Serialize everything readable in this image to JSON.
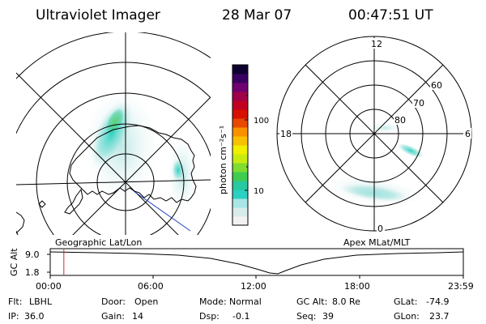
{
  "header": {
    "instrument": "Ultraviolet Imager",
    "date": "28 Mar 07",
    "time": "00:47:51 UT"
  },
  "colorbar": {
    "label": "photon cm⁻²s⁻¹",
    "ticks": [
      "100",
      "10"
    ],
    "colors": [
      "#f2f2f2",
      "#d8ecec",
      "#a8e6e6",
      "#2ad0c0",
      "#28c8a0",
      "#40cc50",
      "#80dc30",
      "#c8ec10",
      "#f0f000",
      "#f8c000",
      "#f89000",
      "#e84800",
      "#d81000",
      "#c00020",
      "#a00048",
      "#700070",
      "#380060",
      "#100030"
    ]
  },
  "geographic_panel": {
    "label": "Geographic Lat/Lon"
  },
  "apex_panel": {
    "label": "Apex MLat/MLT",
    "mlt_labels": {
      "top": "12",
      "right": "6",
      "bottom": "0",
      "left": "18"
    },
    "lat_labels": [
      "60",
      "70",
      "80"
    ]
  },
  "altitude_plot": {
    "axis_label": "GC Alt",
    "y_ticks": [
      "9.0",
      "1.8"
    ],
    "x_ticks": [
      "00:00",
      "06:00",
      "12:00",
      "18:00",
      "23:59"
    ],
    "marker_time_fraction": 0.033,
    "marker_color": "#c03030"
  },
  "status": {
    "row1": [
      {
        "label": "Flt:",
        "value": "LBHL"
      },
      {
        "label": "Door:",
        "value": "Open"
      },
      {
        "label": "Mode:",
        "value": "Normal"
      },
      {
        "label": "GC Alt:",
        "value": "8.0 Re"
      },
      {
        "label": "GLat:",
        "value": "-74.9"
      }
    ],
    "row2": [
      {
        "label": "IP:",
        "value": "36.0"
      },
      {
        "label": "Gain:",
        "value": "14"
      },
      {
        "label": "Dsp:",
        "value": "-0.1"
      },
      {
        "label": "Seq:",
        "value": "39"
      },
      {
        "label": "GLon:",
        "value": "23.7"
      }
    ]
  }
}
